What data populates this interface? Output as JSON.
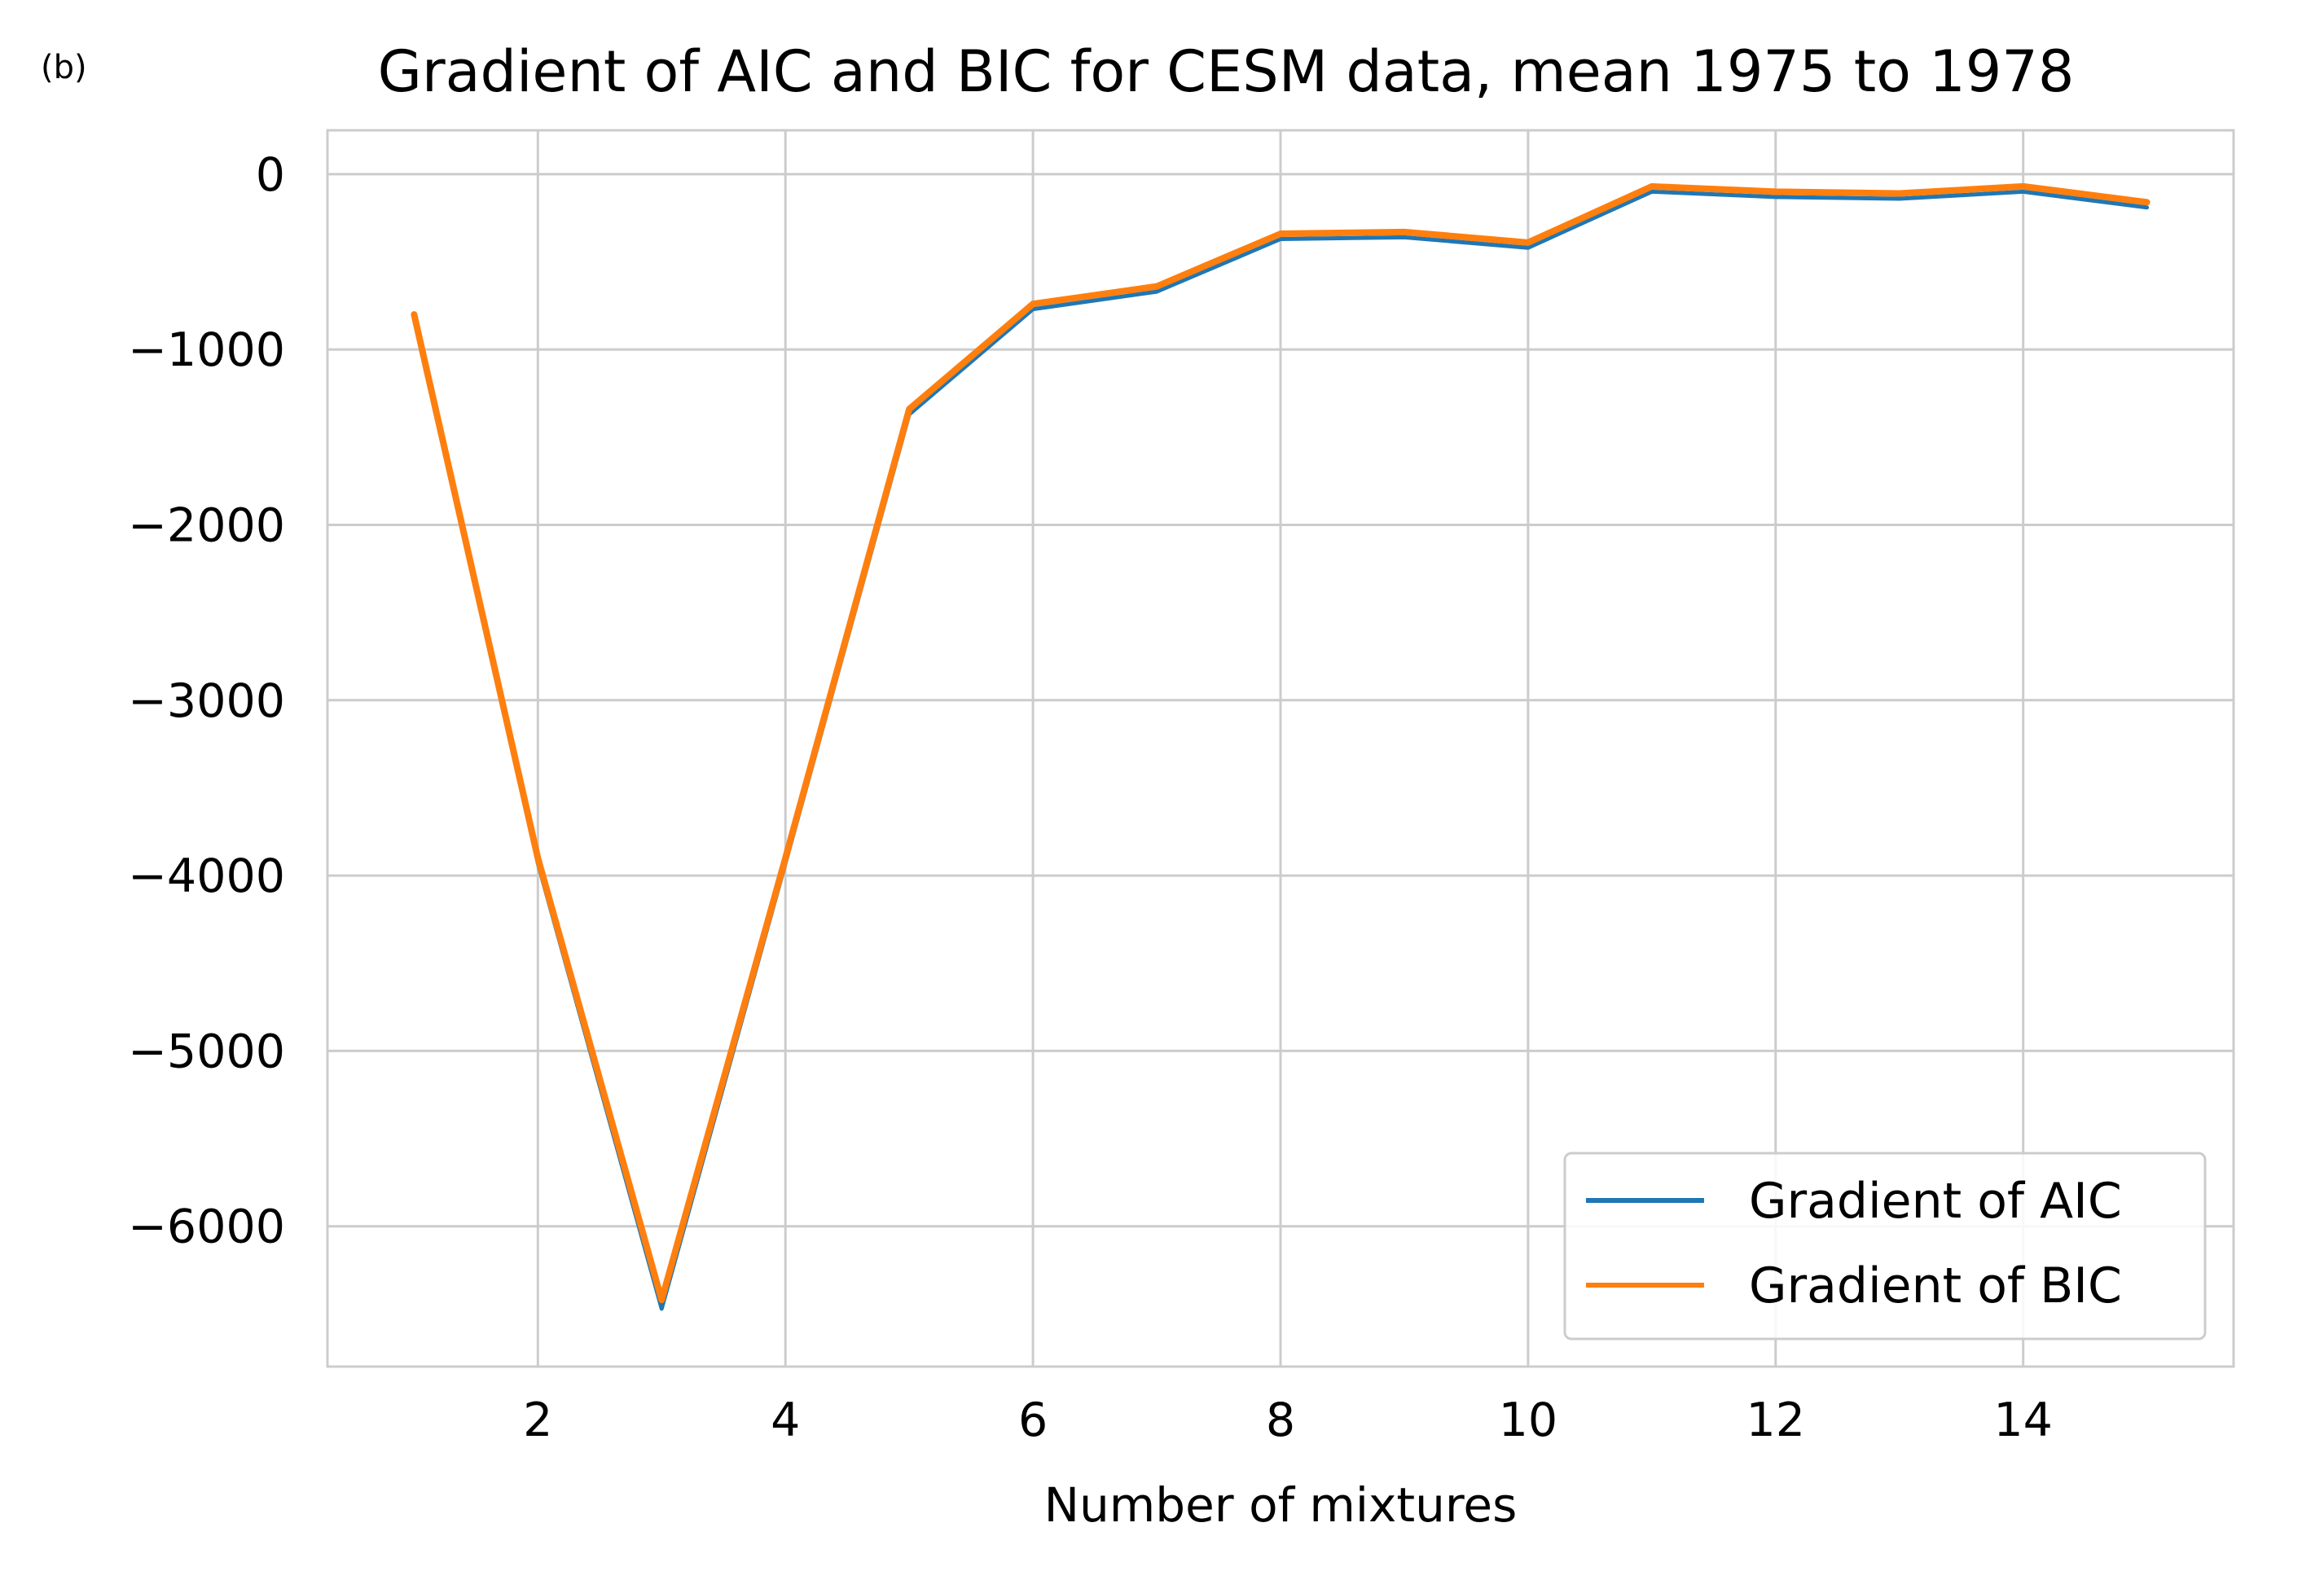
{
  "panel_label": "(b)",
  "chart_data": {
    "type": "line",
    "title": "Gradient of AIC and BIC for CESM data, mean 1975 to 1978",
    "xlabel": "Number of mixtures",
    "ylabel": "",
    "xlim": [
      0.3,
      15.7
    ],
    "ylim": [
      -6800,
      250
    ],
    "xticks": [
      2,
      4,
      6,
      8,
      10,
      12,
      14
    ],
    "xtick_labels": [
      "2",
      "4",
      "6",
      "8",
      "10",
      "12",
      "14"
    ],
    "yticks": [
      0,
      -1000,
      -2000,
      -3000,
      -4000,
      -5000,
      -6000
    ],
    "ytick_labels": [
      "0",
      "−1000",
      "−2000",
      "−3000",
      "−4000",
      "−5000",
      "−6000"
    ],
    "grid": true,
    "legend_position": "lower-right",
    "x": [
      1,
      2,
      3,
      4,
      5,
      6,
      7,
      8,
      9,
      10,
      11,
      12,
      13,
      14,
      15
    ],
    "series": [
      {
        "name": "Gradient of AIC",
        "color": "#1f77b4",
        "values": [
          -830,
          -3930,
          -6470,
          -3930,
          -1370,
          -770,
          -670,
          -370,
          -360,
          -420,
          -100,
          -130,
          -140,
          -100,
          -190
        ]
      },
      {
        "name": "Gradient of BIC",
        "color": "#ff7f0e",
        "values": [
          -800,
          -3900,
          -6420,
          -3900,
          -1340,
          -740,
          -640,
          -340,
          -330,
          -390,
          -70,
          -100,
          -110,
          -70,
          -160
        ]
      }
    ]
  }
}
